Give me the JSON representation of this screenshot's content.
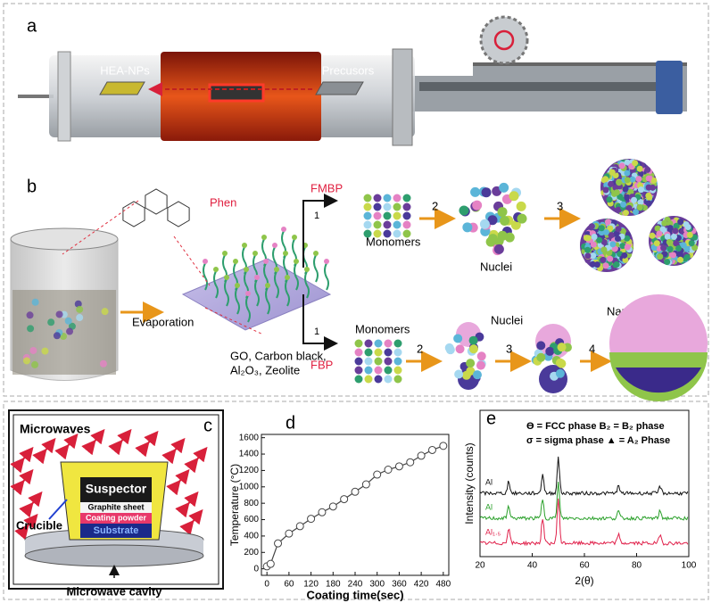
{
  "figure": {
    "a": {
      "label": "a",
      "product": "HEA-NPs",
      "precursors": "Precusors"
    },
    "b": {
      "label": "b",
      "molecule": "Phen",
      "evaporation": "Evaporation",
      "supports": [
        "GO, Carbon black,",
        "Al₂O₃, Zeolite"
      ],
      "top_route": "FMBP",
      "bottom_route": "FBP",
      "top_steps": [
        "1",
        "2",
        "3"
      ],
      "bottom_steps": [
        "1",
        "2",
        "3",
        "4"
      ],
      "monomers": "Monomers",
      "nuclei": "Nuclei",
      "nanocrystals": "Nanocrystals"
    },
    "c": {
      "label": "c",
      "microwaves": "Microwaves",
      "suspector": "Suspector",
      "graphite": "Graphite sheet",
      "coating": "Coating powder",
      "substrate": "Substrate",
      "crucible": "Crucible",
      "cavity": "Microwave cavity"
    }
  },
  "chart_data": [
    {
      "type": "line",
      "label": "d",
      "x_label": "Coating time(sec)",
      "y_label": "Temperature (°C)",
      "x": [
        0,
        10,
        30,
        60,
        90,
        120,
        150,
        180,
        210,
        240,
        270,
        300,
        330,
        360,
        390,
        420,
        450,
        480
      ],
      "values": [
        30,
        60,
        310,
        430,
        520,
        610,
        690,
        760,
        850,
        940,
        1030,
        1150,
        1210,
        1250,
        1300,
        1380,
        1450,
        1500
      ],
      "color": "#444444",
      "xlim": [
        -15,
        495
      ],
      "xticks": [
        0,
        60,
        120,
        180,
        240,
        300,
        360,
        420,
        480
      ],
      "ylim": [
        -80,
        1640
      ],
      "yticks": [
        0,
        200,
        400,
        600,
        800,
        1000,
        1200,
        1400,
        1600
      ]
    },
    {
      "type": "xrd",
      "label": "e",
      "x_label": "2(θ)",
      "y_label": "Intensity (counts)",
      "xlim": [
        20,
        100
      ],
      "xticks": [
        20,
        40,
        60,
        80,
        100
      ],
      "legend": [
        "ϴ = FCC phase  B₂ = B₂ phase",
        "σ = sigma phase ▲ = A₂ Phase"
      ],
      "samples": [
        {
          "name": "Al",
          "color": "#111111"
        },
        {
          "name": "Al",
          "color": "#2aa02a"
        },
        {
          "name": "Al₁.₅",
          "color": "#e0204a"
        }
      ]
    }
  ]
}
